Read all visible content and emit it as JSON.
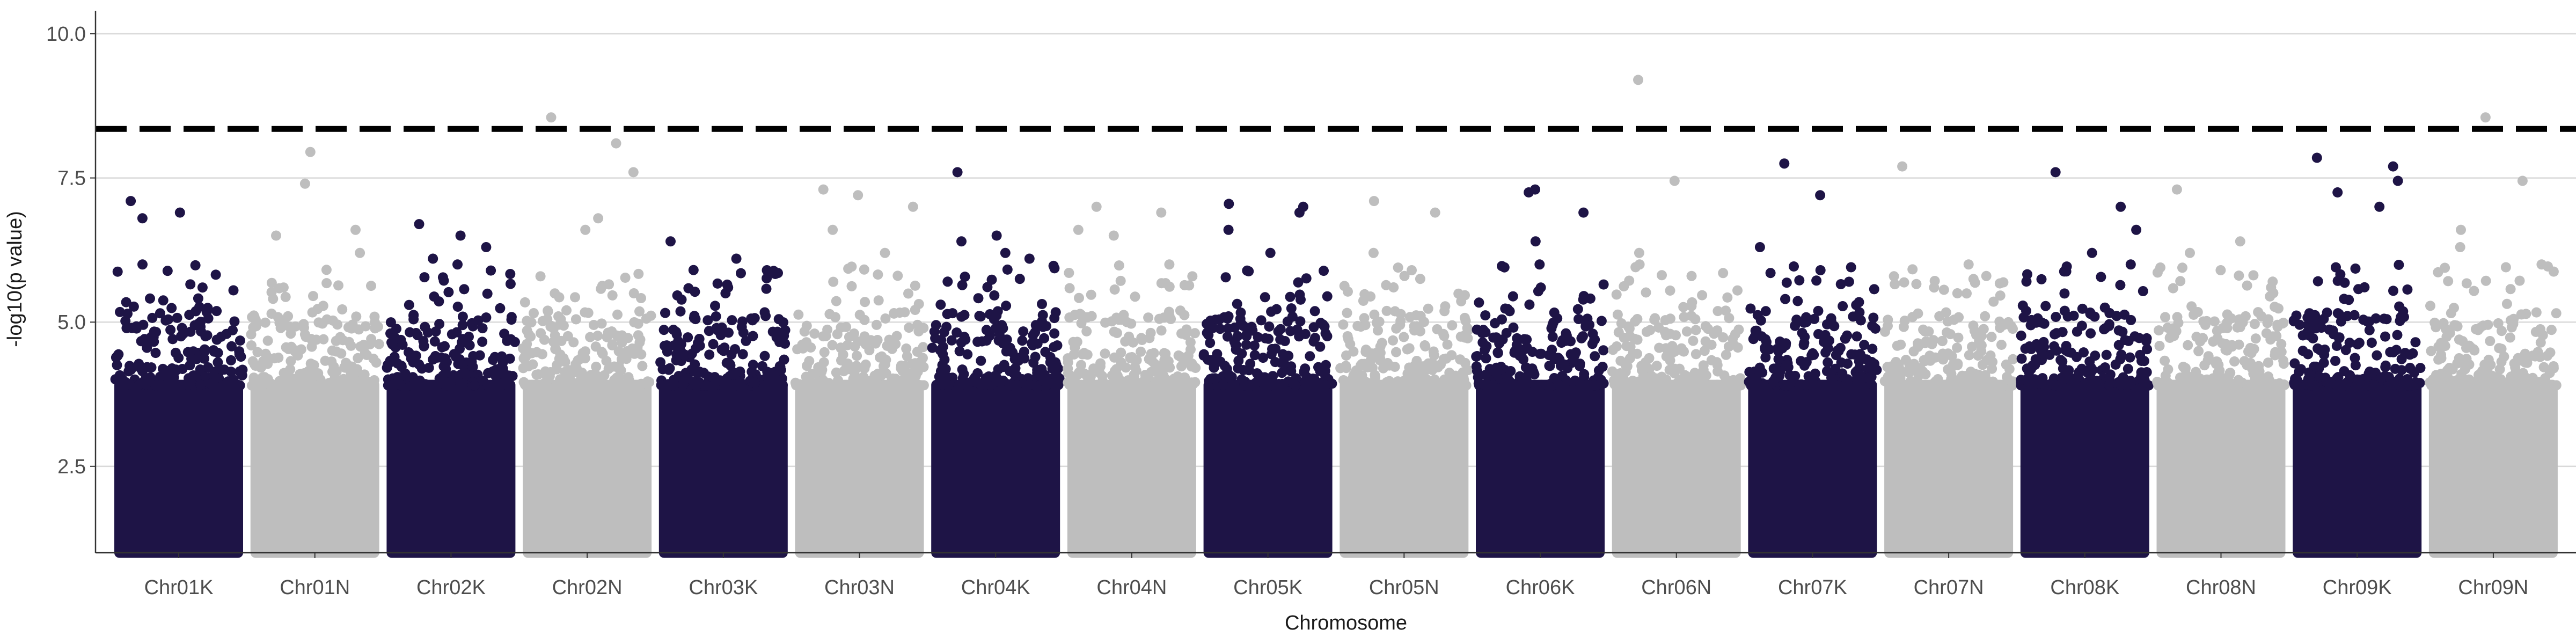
{
  "chart_data": {
    "type": "scatter",
    "subtype": "manhattan",
    "title": "",
    "xlabel": "Chromosome",
    "ylabel": "-log10(p value)",
    "ylim": [
      1.0,
      10.4
    ],
    "yticks": [
      2.5,
      5.0,
      7.5,
      10.0
    ],
    "ytick_labels": [
      "2.5",
      "5.0",
      "7.5",
      "10.0"
    ],
    "grid": "horizontal major gridlines",
    "significance_threshold": 8.35,
    "threshold_style": "dashed black line",
    "colors": {
      "odd": "#1e1446",
      "even": "#bebebe",
      "threshold": "#000000",
      "grid": "#d9d9d9"
    },
    "chromosomes": [
      {
        "name": "Chr01K",
        "max_peak": 7.1,
        "top_points": [
          7.1,
          6.9,
          6.8,
          6.0,
          5.6
        ]
      },
      {
        "name": "Chr01N",
        "max_peak": 7.95,
        "top_points": [
          7.95,
          7.4,
          6.6,
          6.5,
          6.2
        ]
      },
      {
        "name": "Chr02K",
        "max_peak": 6.7,
        "top_points": [
          6.7,
          6.5,
          6.3,
          6.1,
          6.0
        ]
      },
      {
        "name": "Chr02N",
        "max_peak": 8.55,
        "top_points": [
          8.55,
          8.1,
          7.6,
          6.8,
          6.6
        ]
      },
      {
        "name": "Chr03K",
        "max_peak": 6.4,
        "top_points": [
          6.4,
          6.1,
          5.9,
          5.6,
          5.5
        ]
      },
      {
        "name": "Chr03N",
        "max_peak": 7.3,
        "top_points": [
          7.3,
          7.2,
          7.0,
          6.6,
          6.2
        ]
      },
      {
        "name": "Chr04K",
        "max_peak": 7.6,
        "top_points": [
          7.6,
          6.5,
          6.4,
          6.2,
          6.1
        ]
      },
      {
        "name": "Chr04N",
        "max_peak": 7.0,
        "top_points": [
          7.0,
          6.9,
          6.6,
          6.5,
          6.0
        ]
      },
      {
        "name": "Chr05K",
        "max_peak": 7.05,
        "top_points": [
          7.05,
          7.0,
          6.9,
          6.6,
          6.2
        ]
      },
      {
        "name": "Chr05N",
        "max_peak": 7.1,
        "top_points": [
          7.1,
          6.9,
          6.2,
          5.9,
          5.8
        ]
      },
      {
        "name": "Chr06K",
        "max_peak": 7.3,
        "top_points": [
          7.3,
          7.25,
          6.9,
          6.4,
          6.0
        ]
      },
      {
        "name": "Chr06N",
        "max_peak": 9.2,
        "top_points": [
          9.2,
          7.45,
          6.2,
          6.0,
          5.8
        ]
      },
      {
        "name": "Chr07K",
        "max_peak": 7.75,
        "top_points": [
          7.75,
          7.2,
          6.3,
          5.9,
          5.7
        ]
      },
      {
        "name": "Chr07N",
        "max_peak": 7.7,
        "top_points": [
          7.7,
          6.0,
          5.8,
          5.6,
          5.5
        ]
      },
      {
        "name": "Chr08K",
        "max_peak": 7.6,
        "top_points": [
          7.6,
          7.0,
          6.6,
          6.2,
          6.0
        ]
      },
      {
        "name": "Chr08N",
        "max_peak": 7.3,
        "top_points": [
          7.3,
          6.4,
          6.2,
          5.9,
          5.6
        ]
      },
      {
        "name": "Chr09K",
        "max_peak": 7.85,
        "top_points": [
          7.85,
          7.7,
          7.45,
          7.25,
          7.0
        ]
      },
      {
        "name": "Chr09N",
        "max_peak": 8.55,
        "top_points": [
          8.55,
          7.45,
          6.6,
          6.3,
          6.0
        ]
      }
    ],
    "min_plotted_value": 1.0
  }
}
